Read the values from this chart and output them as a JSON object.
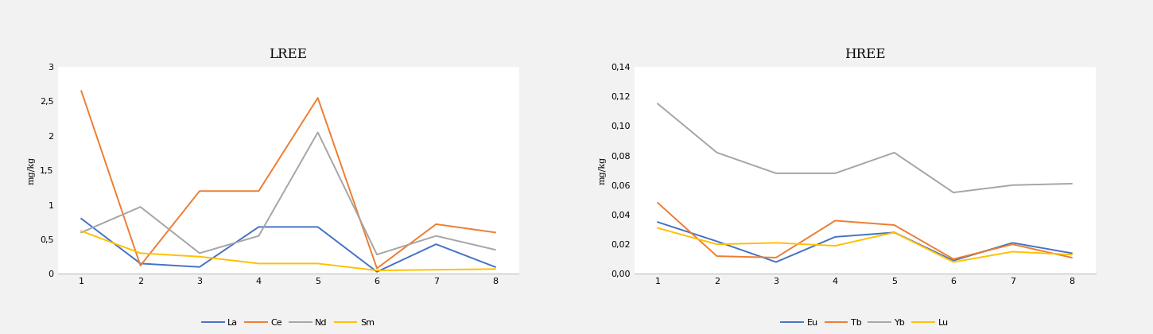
{
  "x": [
    1,
    2,
    3,
    4,
    5,
    6,
    7,
    8
  ],
  "lree": {
    "title": "LREE",
    "ylabel": "mg/kg",
    "ylim": [
      0,
      3.0
    ],
    "yticks": [
      0,
      0.5,
      1.0,
      1.5,
      2.0,
      2.5,
      3.0
    ],
    "ytick_labels": [
      "0",
      "0,5",
      "1",
      "1,5",
      "2",
      "2,5",
      "3"
    ],
    "series": {
      "La": {
        "values": [
          0.8,
          0.15,
          0.1,
          0.68,
          0.68,
          0.03,
          0.43,
          0.1
        ],
        "color": "#4472C4",
        "label": "La"
      },
      "Ce": {
        "values": [
          2.65,
          0.12,
          1.2,
          1.2,
          2.55,
          0.08,
          0.72,
          0.6
        ],
        "color": "#ED7D31",
        "label": "Ce"
      },
      "Nd": {
        "values": [
          0.6,
          0.97,
          0.3,
          0.55,
          2.05,
          0.28,
          0.55,
          0.35
        ],
        "color": "#A5A5A5",
        "label": "Nd"
      },
      "Sm": {
        "values": [
          0.62,
          0.3,
          0.25,
          0.15,
          0.15,
          0.05,
          0.06,
          0.07
        ],
        "color": "#FFC000",
        "label": "Sm"
      }
    }
  },
  "hree": {
    "title": "HREE",
    "ylabel": "mg/kg",
    "ylim": [
      0.0,
      0.14
    ],
    "yticks": [
      0.0,
      0.02,
      0.04,
      0.06,
      0.08,
      0.1,
      0.12,
      0.14
    ],
    "ytick_labels": [
      "0,00",
      "0,02",
      "0,04",
      "0,06",
      "0,08",
      "0,10",
      "0,12",
      "0,14"
    ],
    "series": {
      "Eu": {
        "values": [
          0.035,
          0.022,
          0.008,
          0.025,
          0.028,
          0.009,
          0.021,
          0.014
        ],
        "color": "#4472C4",
        "label": "Eu"
      },
      "Tb": {
        "values": [
          0.048,
          0.012,
          0.011,
          0.036,
          0.033,
          0.01,
          0.02,
          0.011
        ],
        "color": "#ED7D31",
        "label": "Tb"
      },
      "Yb": {
        "values": [
          0.115,
          0.082,
          0.068,
          0.068,
          0.082,
          0.055,
          0.06,
          0.061
        ],
        "color": "#A5A5A5",
        "label": "Yb"
      },
      "Lu": {
        "values": [
          0.031,
          0.02,
          0.021,
          0.019,
          0.028,
          0.008,
          0.015,
          0.013
        ],
        "color": "#FFC000",
        "label": "Lu"
      }
    }
  },
  "background_color": "#F2F2F2",
  "plot_bg_color": "#FFFFFF",
  "line_width": 1.4
}
